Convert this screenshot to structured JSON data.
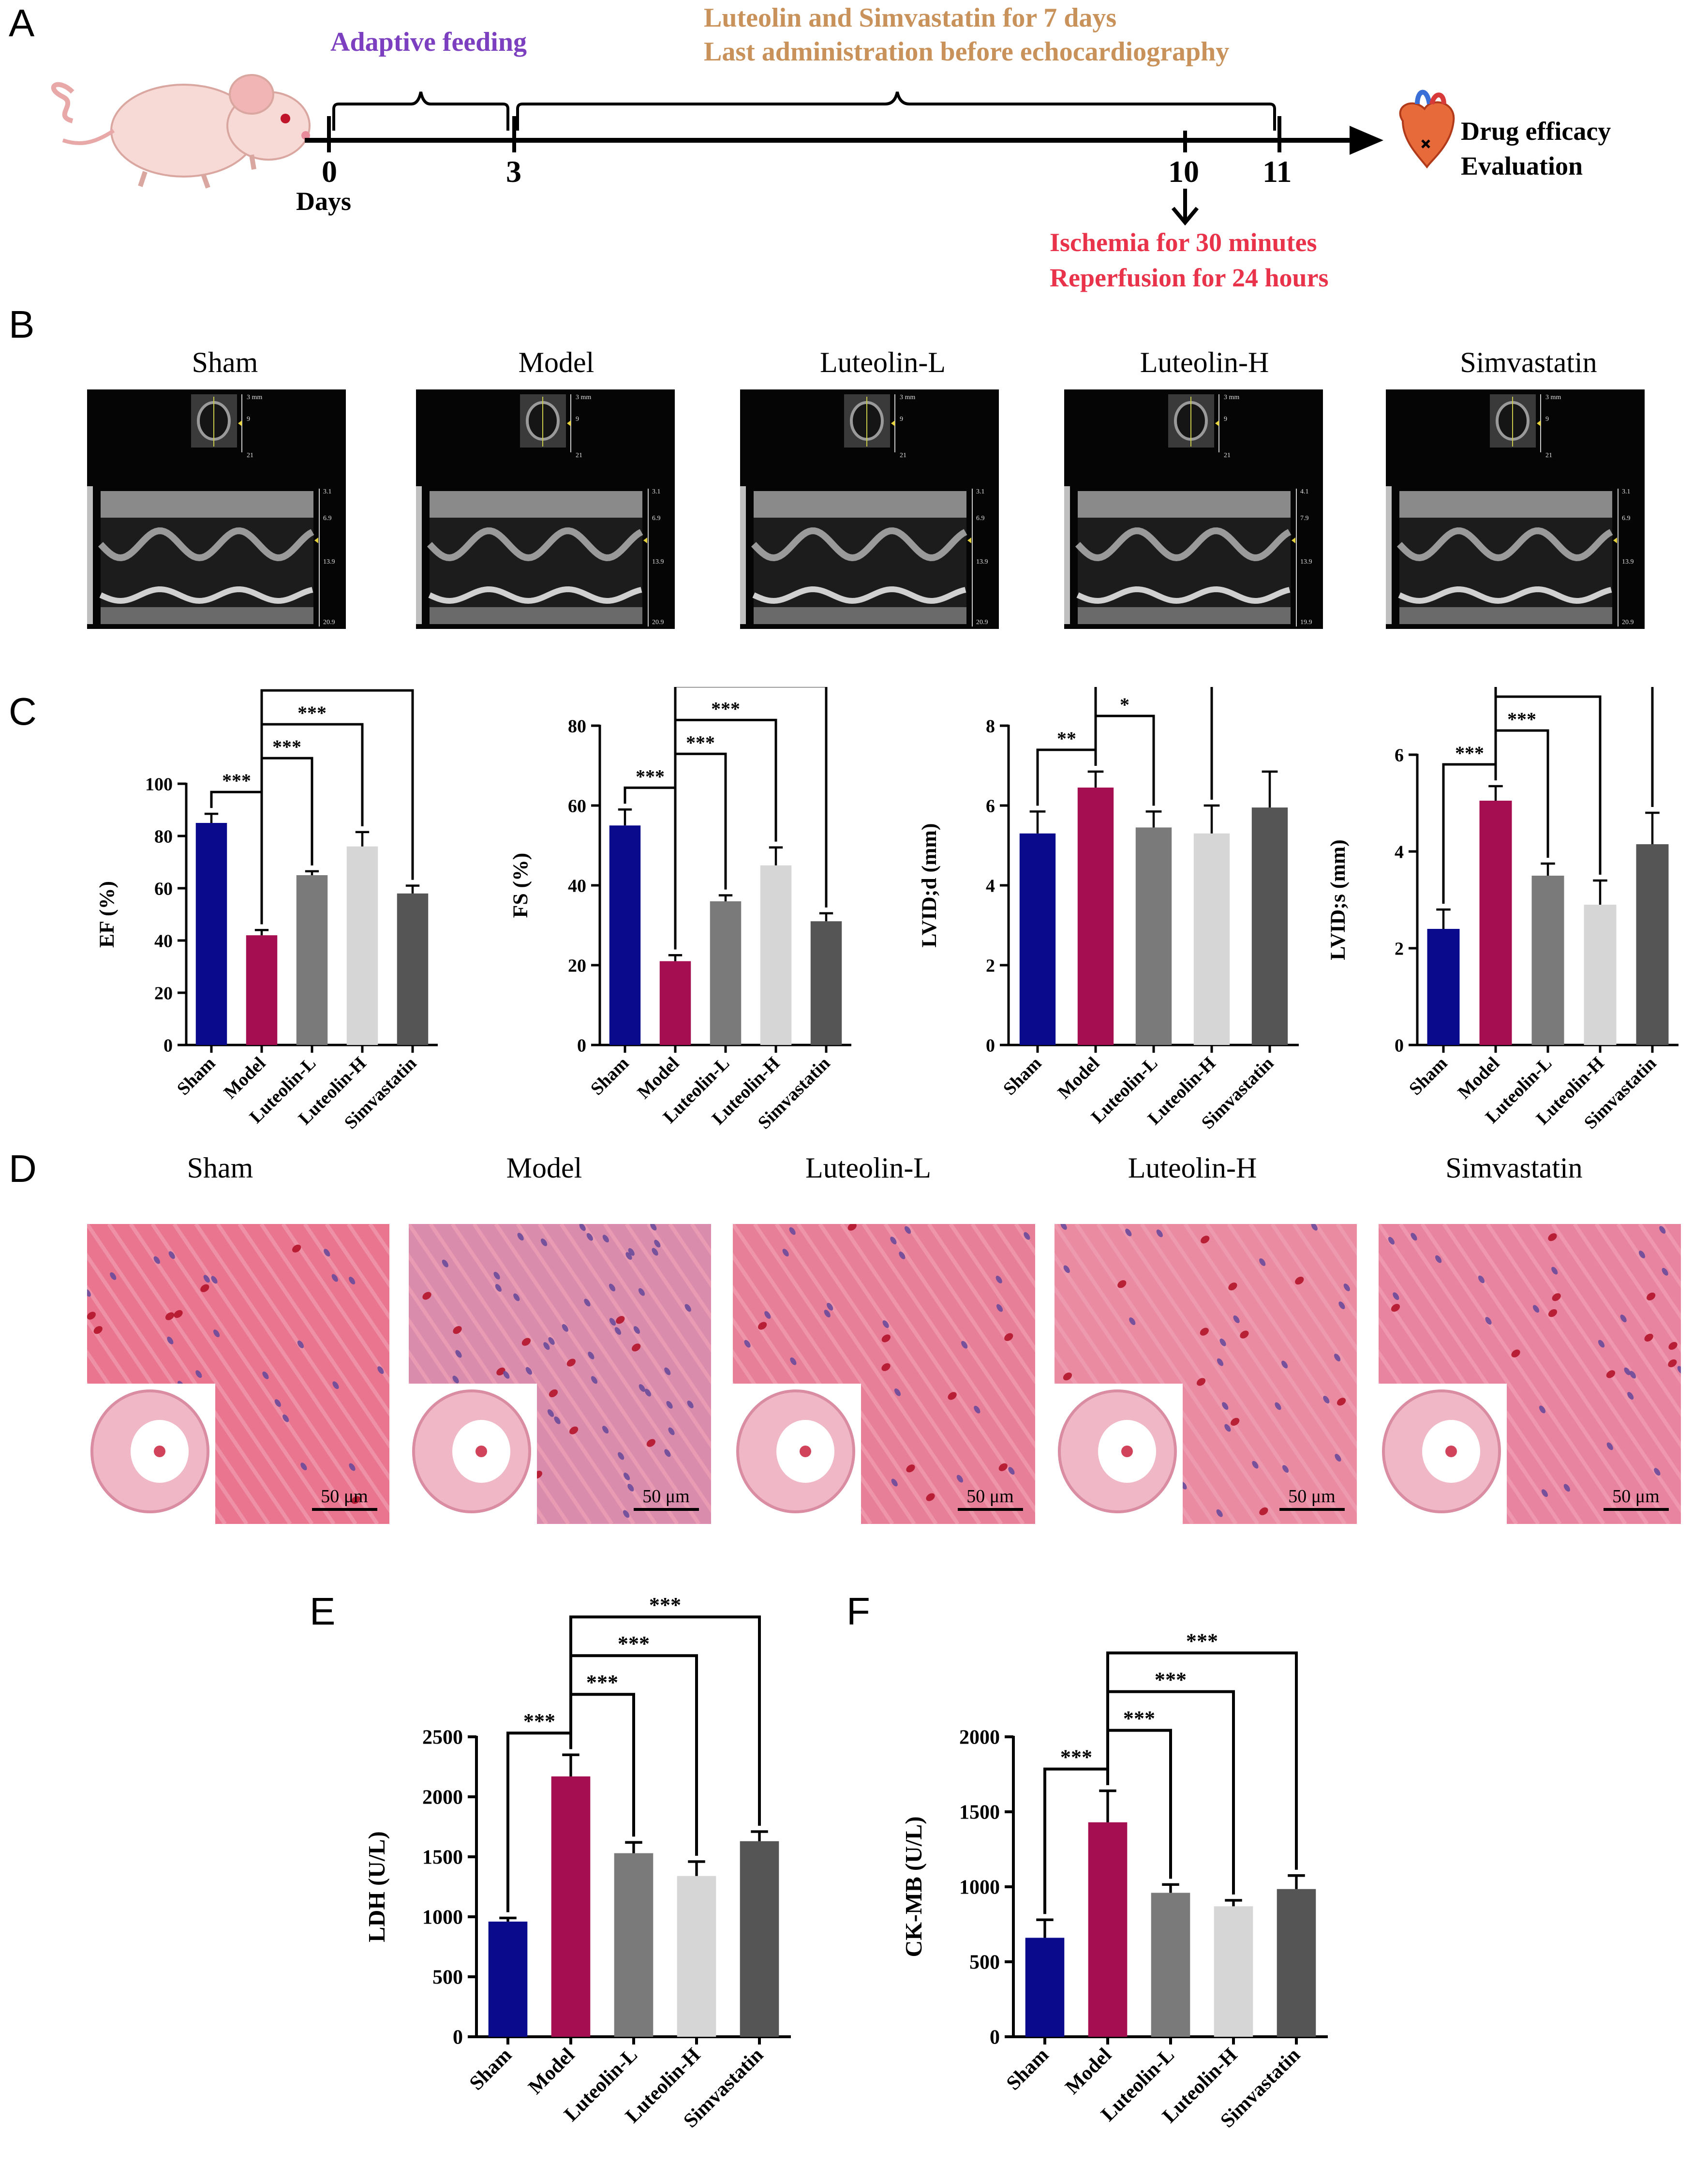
{
  "panel_letters": [
    "A",
    "B",
    "C",
    "D",
    "E",
    "F"
  ],
  "timeline": {
    "phase1": "Adaptive feeding",
    "phase2_line1": "Luteolin and Simvastatin for 7 days",
    "phase2_line2": "Last administration before echocardiography",
    "ticks": [
      "0",
      "3",
      "10",
      "11"
    ],
    "days_label": "Days",
    "ischemia_line1": "Ischemia for 30 minutes",
    "ischemia_line2": "Reperfusion for 24 hours",
    "end_line1": "Drug efficacy",
    "end_line2": "Evaluation",
    "colors": {
      "purple": "#7b3fbf",
      "gold": "#c8925a",
      "red": "#e8334a"
    }
  },
  "groups": [
    "Sham",
    "Model",
    "Luteolin-L",
    "Luteolin-H",
    "Simvastatin"
  ],
  "echo_scales": [
    {
      "top": [
        "3 mm",
        "9",
        "21"
      ],
      "mmode": [
        "3.1",
        "6.9",
        "13.9",
        "20.9"
      ]
    },
    {
      "top": [
        "3 mm",
        "9",
        "21"
      ],
      "mmode": [
        "3.1",
        "6.9",
        "13.9",
        "20.9"
      ]
    },
    {
      "top": [
        "3 mm",
        "9",
        "21"
      ],
      "mmode": [
        "3.1",
        "6.9",
        "13.9",
        "20.9"
      ]
    },
    {
      "top": [
        "3 mm",
        "9",
        "21"
      ],
      "mmode": [
        "4.1",
        "7.9",
        "13.9",
        "19.9"
      ]
    },
    {
      "top": [
        "3 mm",
        "9",
        "21"
      ],
      "mmode": [
        "3.1",
        "6.9",
        "13.9",
        "20.9"
      ]
    }
  ],
  "scale_bar_label": "50 μm",
  "bar_colors": [
    "#0a0a8c",
    "#a50e50",
    "#7a7a7a",
    "#d6d6d6",
    "#555555"
  ],
  "chart_data": [
    {
      "type": "bar",
      "panel": "C",
      "ylabel": "EF (%)",
      "ylim": [
        0,
        100
      ],
      "yticks": [
        0,
        20,
        40,
        60,
        80,
        100
      ],
      "categories": [
        "Sham",
        "Model",
        "Luteolin-L",
        "Luteolin-H",
        "Simvastatin"
      ],
      "values": [
        85,
        42,
        65,
        76,
        58
      ],
      "errors": [
        3.5,
        2,
        1.5,
        5.5,
        3
      ],
      "significance": [
        {
          "from": 1,
          "to": 0,
          "label": "***"
        },
        {
          "from": 1,
          "to": 2,
          "label": "***"
        },
        {
          "from": 1,
          "to": 3,
          "label": "***"
        },
        {
          "from": 1,
          "to": 4,
          "label": "***"
        }
      ]
    },
    {
      "type": "bar",
      "panel": "C",
      "ylabel": "FS (%)",
      "ylim": [
        0,
        80
      ],
      "yticks": [
        0,
        20,
        40,
        60,
        80
      ],
      "categories": [
        "Sham",
        "Model",
        "Luteolin-L",
        "Luteolin-H",
        "Simvastatin"
      ],
      "values": [
        55,
        21,
        36,
        45,
        31
      ],
      "errors": [
        4,
        1.5,
        1.5,
        4.5,
        2
      ],
      "significance": [
        {
          "from": 1,
          "to": 0,
          "label": "***"
        },
        {
          "from": 1,
          "to": 2,
          "label": "***"
        },
        {
          "from": 1,
          "to": 3,
          "label": "***"
        },
        {
          "from": 1,
          "to": 4,
          "label": "***"
        }
      ]
    },
    {
      "type": "bar",
      "panel": "C",
      "ylabel": "LVID;d (mm)",
      "ylim": [
        0,
        8
      ],
      "yticks": [
        0,
        2,
        4,
        6,
        8
      ],
      "categories": [
        "Sham",
        "Model",
        "Luteolin-L",
        "Luteolin-H",
        "Simvastatin"
      ],
      "values": [
        5.3,
        6.45,
        5.45,
        5.3,
        5.95
      ],
      "errors": [
        0.55,
        0.4,
        0.4,
        0.7,
        0.9
      ],
      "significance": [
        {
          "from": 1,
          "to": 0,
          "label": "**"
        },
        {
          "from": 1,
          "to": 2,
          "label": "*"
        },
        {
          "from": 1,
          "to": 3,
          "label": "**"
        }
      ]
    },
    {
      "type": "bar",
      "panel": "C",
      "ylabel": "LVID;s (mm)",
      "ylim": [
        0,
        6
      ],
      "yticks": [
        0,
        2,
        4,
        6
      ],
      "categories": [
        "Sham",
        "Model",
        "Luteolin-L",
        "Luteolin-H",
        "Simvastatin"
      ],
      "values": [
        2.4,
        5.05,
        3.5,
        2.9,
        4.15
      ],
      "errors": [
        0.4,
        0.3,
        0.25,
        0.5,
        0.65
      ],
      "significance": [
        {
          "from": 1,
          "to": 0,
          "label": "***"
        },
        {
          "from": 1,
          "to": 2,
          "label": "***"
        },
        {
          "from": 1,
          "to": 3,
          "label": "***"
        },
        {
          "from": 1,
          "to": 4,
          "label": "***"
        }
      ]
    },
    {
      "type": "bar",
      "panel": "E",
      "ylabel": "LDH (U/L)",
      "ylim": [
        0,
        2500
      ],
      "yticks": [
        0,
        500,
        1000,
        1500,
        2000,
        2500
      ],
      "categories": [
        "Sham",
        "Model",
        "Luteolin-L",
        "Luteolin-H",
        "Simvastatin"
      ],
      "values": [
        960,
        2170,
        1530,
        1340,
        1630
      ],
      "errors": [
        30,
        180,
        90,
        120,
        80
      ],
      "significance": [
        {
          "from": 1,
          "to": 0,
          "label": "***"
        },
        {
          "from": 1,
          "to": 2,
          "label": "***"
        },
        {
          "from": 1,
          "to": 3,
          "label": "***"
        },
        {
          "from": 1,
          "to": 4,
          "label": "***"
        }
      ]
    },
    {
      "type": "bar",
      "panel": "F",
      "ylabel": "CK-MB (U/L)",
      "ylim": [
        0,
        2000
      ],
      "yticks": [
        0,
        500,
        1000,
        1500,
        2000
      ],
      "categories": [
        "Sham",
        "Model",
        "Luteolin-L",
        "Luteolin-H",
        "Simvastatin"
      ],
      "values": [
        660,
        1430,
        960,
        870,
        985
      ],
      "errors": [
        120,
        210,
        55,
        40,
        90
      ],
      "significance": [
        {
          "from": 1,
          "to": 0,
          "label": "***"
        },
        {
          "from": 1,
          "to": 2,
          "label": "***"
        },
        {
          "from": 1,
          "to": 3,
          "label": "***"
        },
        {
          "from": 1,
          "to": 4,
          "label": "***"
        }
      ]
    }
  ]
}
